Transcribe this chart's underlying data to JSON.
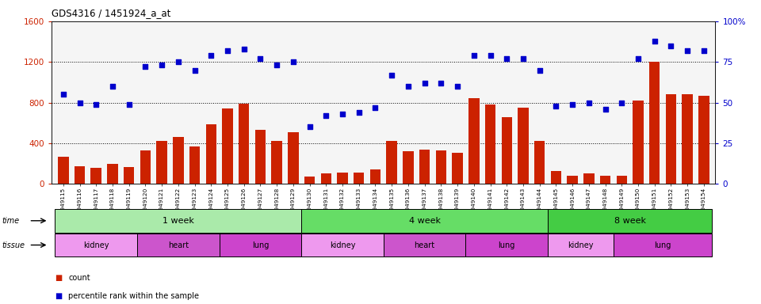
{
  "title": "GDS4316 / 1451924_a_at",
  "samples": [
    "GSM949115",
    "GSM949116",
    "GSM949117",
    "GSM949118",
    "GSM949119",
    "GSM949120",
    "GSM949121",
    "GSM949122",
    "GSM949123",
    "GSM949124",
    "GSM949125",
    "GSM949126",
    "GSM949127",
    "GSM949128",
    "GSM949129",
    "GSM949130",
    "GSM949131",
    "GSM949132",
    "GSM949133",
    "GSM949134",
    "GSM949135",
    "GSM949136",
    "GSM949137",
    "GSM949138",
    "GSM949139",
    "GSM949140",
    "GSM949141",
    "GSM949142",
    "GSM949143",
    "GSM949144",
    "GSM949145",
    "GSM949146",
    "GSM949147",
    "GSM949148",
    "GSM949149",
    "GSM949150",
    "GSM949151",
    "GSM949152",
    "GSM949153",
    "GSM949154"
  ],
  "counts": [
    270,
    170,
    160,
    195,
    165,
    330,
    420,
    460,
    370,
    590,
    740,
    790,
    530,
    420,
    510,
    75,
    100,
    110,
    110,
    145,
    420,
    320,
    340,
    330,
    305,
    840,
    780,
    660,
    750,
    420,
    130,
    80,
    100,
    80,
    80,
    820,
    1200,
    880,
    880,
    870
  ],
  "percentile": [
    55,
    50,
    49,
    60,
    49,
    72,
    73,
    75,
    70,
    79,
    82,
    83,
    77,
    73,
    75,
    35,
    42,
    43,
    44,
    47,
    67,
    60,
    62,
    62,
    60,
    79,
    79,
    77,
    77,
    70,
    48,
    49,
    50,
    46,
    50,
    77,
    88,
    85,
    82,
    82
  ],
  "bar_color": "#cc2200",
  "dot_color": "#0000cc",
  "ylim_left": [
    0,
    1600
  ],
  "ylim_right": [
    0,
    100
  ],
  "yticks_left": [
    0,
    400,
    800,
    1200,
    1600
  ],
  "yticks_right": [
    0,
    25,
    50,
    75,
    100
  ],
  "ylabel_right_labels": [
    "0",
    "25",
    "50",
    "75",
    "100%"
  ],
  "time_blocks": [
    {
      "label": "1 week",
      "start": 0,
      "end": 14,
      "color": "#aaeaaa"
    },
    {
      "label": "4 week",
      "start": 15,
      "end": 29,
      "color": "#66dd66"
    },
    {
      "label": "8 week",
      "start": 30,
      "end": 39,
      "color": "#44cc44"
    }
  ],
  "tissue_blocks": [
    {
      "label": "kidney",
      "start": 0,
      "end": 4,
      "color": "#ee99ee"
    },
    {
      "label": "heart",
      "start": 5,
      "end": 9,
      "color": "#cc55cc"
    },
    {
      "label": "lung",
      "start": 10,
      "end": 14,
      "color": "#cc44cc"
    },
    {
      "label": "kidney",
      "start": 15,
      "end": 19,
      "color": "#ee99ee"
    },
    {
      "label": "heart",
      "start": 20,
      "end": 24,
      "color": "#cc55cc"
    },
    {
      "label": "lung",
      "start": 25,
      "end": 29,
      "color": "#cc44cc"
    },
    {
      "label": "kidney",
      "start": 30,
      "end": 33,
      "color": "#ee99ee"
    },
    {
      "label": "lung",
      "start": 34,
      "end": 39,
      "color": "#cc44cc"
    }
  ],
  "legend_count_color": "#cc2200",
  "legend_dot_color": "#0000cc",
  "bg_color": "#ffffff",
  "plot_bg_color": "#f5f5f5"
}
